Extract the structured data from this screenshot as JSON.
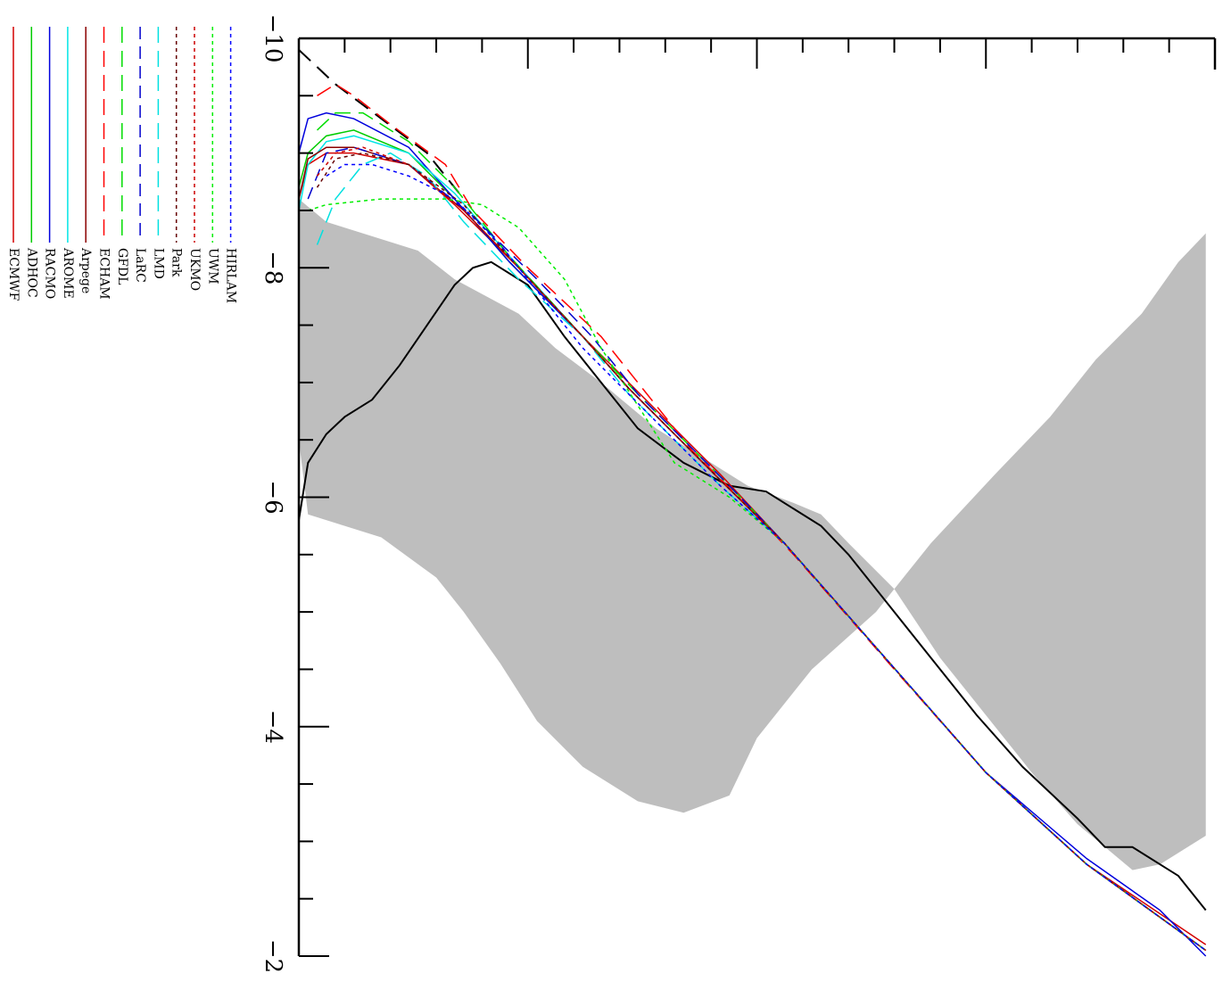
{
  "chart_data": {
    "type": "line",
    "orientation": "rotated-90-clockwise",
    "title": "",
    "xlabel": "",
    "ylabel": "",
    "xlim": [
      -10,
      -2
    ],
    "ylim": [
      0,
      1
    ],
    "x_ticks": [
      -10,
      -8,
      -6,
      -4,
      -2
    ],
    "x_tick_labels": [
      "−10",
      "−8",
      "−6",
      "−4",
      "−2"
    ],
    "grid": false,
    "legend_position": "top-left",
    "envelope": {
      "name": "",
      "color": "#bebebe",
      "upper": [
        [
          -8.6,
          0.0
        ],
        [
          -8.4,
          0.03
        ],
        [
          -8.15,
          0.13
        ],
        [
          -7.9,
          0.17
        ],
        [
          -7.6,
          0.24
        ],
        [
          -7.3,
          0.28
        ],
        [
          -7.0,
          0.33
        ],
        [
          -6.6,
          0.39
        ],
        [
          -6.1,
          0.49
        ],
        [
          -5.95,
          0.54
        ],
        [
          -5.85,
          0.57
        ],
        [
          -5.6,
          0.6
        ],
        [
          -5.2,
          0.65
        ],
        [
          -4.6,
          0.7
        ],
        [
          -4.1,
          0.75
        ],
        [
          -3.6,
          0.8
        ],
        [
          -3.15,
          0.85
        ],
        [
          -2.95,
          0.88
        ],
        [
          -2.75,
          0.91
        ],
        [
          -2.8,
          0.94
        ],
        [
          -3.05,
          0.99
        ]
      ],
      "lower": [
        [
          -6.5,
          0.0
        ],
        [
          -5.85,
          0.01
        ],
        [
          -5.75,
          0.05
        ],
        [
          -5.65,
          0.09
        ],
        [
          -5.3,
          0.15
        ],
        [
          -5.0,
          0.18
        ],
        [
          -4.55,
          0.22
        ],
        [
          -4.05,
          0.26
        ],
        [
          -3.65,
          0.31
        ],
        [
          -3.35,
          0.37
        ],
        [
          -3.25,
          0.42
        ],
        [
          -3.4,
          0.47
        ],
        [
          -3.9,
          0.5
        ],
        [
          -4.5,
          0.56
        ],
        [
          -5.0,
          0.63
        ],
        [
          -5.6,
          0.69
        ],
        [
          -6.2,
          0.76
        ],
        [
          -6.7,
          0.82
        ],
        [
          -7.2,
          0.87
        ],
        [
          -7.6,
          0.92
        ],
        [
          -8.05,
          0.96
        ],
        [
          -8.3,
          0.99
        ]
      ]
    },
    "series": [
      {
        "name": "",
        "color": "#000000",
        "dash": "solid",
        "width": 2,
        "points": [
          [
            -5.8,
            0.0
          ],
          [
            -6.3,
            0.01
          ],
          [
            -6.55,
            0.03
          ],
          [
            -6.7,
            0.05
          ],
          [
            -6.85,
            0.08
          ],
          [
            -7.15,
            0.11
          ],
          [
            -7.5,
            0.14
          ],
          [
            -7.85,
            0.17
          ],
          [
            -8.0,
            0.19
          ],
          [
            -8.05,
            0.21
          ],
          [
            -7.85,
            0.25
          ],
          [
            -7.4,
            0.29
          ],
          [
            -7.0,
            0.33
          ],
          [
            -6.6,
            0.37
          ],
          [
            -6.3,
            0.42
          ],
          [
            -6.1,
            0.47
          ],
          [
            -6.05,
            0.51
          ],
          [
            -5.9,
            0.54
          ],
          [
            -5.75,
            0.57
          ],
          [
            -5.5,
            0.6
          ],
          [
            -5.1,
            0.64
          ],
          [
            -4.6,
            0.69
          ],
          [
            -4.1,
            0.74
          ],
          [
            -3.65,
            0.79
          ],
          [
            -3.2,
            0.85
          ],
          [
            -2.95,
            0.88
          ],
          [
            -2.95,
            0.91
          ],
          [
            -2.7,
            0.96
          ],
          [
            -2.4,
            0.99
          ]
        ]
      },
      {
        "name": "",
        "color": "#000000",
        "dash": "18,10",
        "width": 2,
        "points": [
          [
            -9.9,
            0.0
          ],
          [
            -9.6,
            0.04
          ],
          [
            -9.3,
            0.09
          ],
          [
            -9.0,
            0.14
          ],
          [
            -8.6,
            0.18
          ]
        ]
      },
      {
        "name": "ECMWF",
        "color": "#d40000",
        "dash": "solid",
        "width": 1.5,
        "points": [
          [
            -8.6,
            0.0
          ],
          [
            -8.9,
            0.01
          ],
          [
            -9.0,
            0.03
          ],
          [
            -9.0,
            0.06
          ],
          [
            -8.9,
            0.12
          ],
          [
            -8.55,
            0.17
          ],
          [
            -8.0,
            0.24
          ],
          [
            -7.4,
            0.31
          ],
          [
            -7.0,
            0.36
          ],
          [
            -6.6,
            0.41
          ],
          [
            -6.2,
            0.46
          ],
          [
            -5.6,
            0.53
          ],
          [
            -4.6,
            0.64
          ],
          [
            -3.6,
            0.75
          ],
          [
            -2.8,
            0.86
          ],
          [
            -2.1,
            0.99
          ]
        ]
      },
      {
        "name": "ADHOC",
        "color": "#00cc00",
        "dash": "solid",
        "width": 1.5,
        "points": [
          [
            -8.7,
            0.0
          ],
          [
            -9.0,
            0.01
          ],
          [
            -9.15,
            0.03
          ],
          [
            -9.2,
            0.06
          ],
          [
            -9.0,
            0.12
          ],
          [
            -8.6,
            0.17
          ],
          [
            -8.05,
            0.23
          ],
          [
            -7.4,
            0.31
          ],
          [
            -6.95,
            0.36
          ],
          [
            -6.55,
            0.41
          ],
          [
            -6.15,
            0.46
          ],
          [
            -5.6,
            0.53
          ],
          [
            -4.6,
            0.64
          ],
          [
            -3.6,
            0.75
          ],
          [
            -2.8,
            0.86
          ],
          [
            -2.05,
            0.99
          ]
        ]
      },
      {
        "name": "RACMO",
        "color": "#0000dd",
        "dash": "solid",
        "width": 1.5,
        "points": [
          [
            -9.0,
            0.0
          ],
          [
            -9.3,
            0.01
          ],
          [
            -9.35,
            0.03
          ],
          [
            -9.3,
            0.06
          ],
          [
            -9.05,
            0.12
          ],
          [
            -8.6,
            0.17
          ],
          [
            -8.05,
            0.23
          ],
          [
            -7.4,
            0.31
          ],
          [
            -6.95,
            0.36
          ],
          [
            -6.55,
            0.41
          ],
          [
            -6.15,
            0.46
          ],
          [
            -5.6,
            0.53
          ],
          [
            -4.6,
            0.64
          ],
          [
            -3.6,
            0.75
          ],
          [
            -2.85,
            0.86
          ],
          [
            -2.4,
            0.94
          ],
          [
            -2.0,
            0.99
          ]
        ]
      },
      {
        "name": "AROME",
        "color": "#00e5e5",
        "dash": "solid",
        "width": 1.5,
        "points": [
          [
            -8.5,
            0.0
          ],
          [
            -8.9,
            0.01
          ],
          [
            -9.1,
            0.03
          ],
          [
            -9.15,
            0.06
          ],
          [
            -9.0,
            0.12
          ],
          [
            -8.65,
            0.17
          ],
          [
            -8.1,
            0.23
          ],
          [
            -7.4,
            0.31
          ],
          [
            -6.95,
            0.36
          ],
          [
            -6.55,
            0.41
          ],
          [
            -6.15,
            0.46
          ],
          [
            -5.6,
            0.53
          ],
          [
            -4.6,
            0.64
          ],
          [
            -3.6,
            0.75
          ],
          [
            -2.8,
            0.86
          ],
          [
            -2.05,
            0.99
          ]
        ]
      },
      {
        "name": "Arpege",
        "color": "#8b0000",
        "dash": "solid",
        "width": 1.5,
        "points": [
          [
            -8.6,
            0.0
          ],
          [
            -8.95,
            0.01
          ],
          [
            -9.05,
            0.03
          ],
          [
            -9.05,
            0.06
          ],
          [
            -8.9,
            0.12
          ],
          [
            -8.5,
            0.18
          ],
          [
            -8.0,
            0.24
          ],
          [
            -7.4,
            0.31
          ],
          [
            -6.95,
            0.36
          ],
          [
            -6.55,
            0.41
          ],
          [
            -6.15,
            0.46
          ],
          [
            -5.6,
            0.53
          ],
          [
            -4.6,
            0.64
          ],
          [
            -3.6,
            0.75
          ],
          [
            -2.8,
            0.86
          ],
          [
            -2.05,
            0.99
          ]
        ]
      },
      {
        "name": "ECHAM",
        "color": "#ff0000",
        "dash": "18,9",
        "width": 1.5,
        "points": [
          [
            -9.5,
            0.02
          ],
          [
            -9.6,
            0.04
          ],
          [
            -9.5,
            0.06
          ],
          [
            -9.25,
            0.1
          ],
          [
            -8.9,
            0.16
          ],
          [
            -8.5,
            0.19
          ],
          [
            -8.0,
            0.25
          ],
          [
            -7.4,
            0.33
          ],
          [
            -6.9,
            0.38
          ],
          [
            -6.4,
            0.43
          ],
          [
            -6.0,
            0.48
          ],
          [
            -5.5,
            0.54
          ],
          [
            -4.5,
            0.65
          ],
          [
            -3.6,
            0.75
          ],
          [
            -2.8,
            0.86
          ],
          [
            -2.05,
            0.99
          ]
        ]
      },
      {
        "name": "GFDL",
        "color": "#00dd00",
        "dash": "18,9",
        "width": 1.5,
        "points": [
          [
            -9.2,
            0.02
          ],
          [
            -9.35,
            0.04
          ],
          [
            -9.35,
            0.07
          ],
          [
            -9.1,
            0.12
          ],
          [
            -8.7,
            0.17
          ],
          [
            -8.1,
            0.23
          ],
          [
            -7.4,
            0.31
          ],
          [
            -6.9,
            0.37
          ],
          [
            -6.5,
            0.42
          ],
          [
            -6.1,
            0.47
          ],
          [
            -5.6,
            0.53
          ],
          [
            -4.6,
            0.64
          ],
          [
            -3.6,
            0.75
          ],
          [
            -2.8,
            0.86
          ],
          [
            -2.05,
            0.99
          ]
        ]
      },
      {
        "name": "LaRC",
        "color": "#0000cc",
        "dash": "14,8",
        "width": 1.5,
        "points": [
          [
            -8.6,
            0.01
          ],
          [
            -9.0,
            0.03
          ],
          [
            -9.05,
            0.06
          ],
          [
            -8.9,
            0.12
          ],
          [
            -8.45,
            0.19
          ],
          [
            -7.9,
            0.26
          ],
          [
            -7.4,
            0.32
          ],
          [
            -6.9,
            0.37
          ],
          [
            -6.5,
            0.42
          ],
          [
            -6.1,
            0.47
          ],
          [
            -5.6,
            0.53
          ],
          [
            -4.6,
            0.64
          ],
          [
            -3.6,
            0.75
          ],
          [
            -2.8,
            0.86
          ],
          [
            -2.05,
            0.99
          ]
        ]
      },
      {
        "name": "LMD",
        "color": "#00e0e0",
        "dash": "18,9",
        "width": 1.5,
        "points": [
          [
            -8.2,
            0.02
          ],
          [
            -8.6,
            0.04
          ],
          [
            -8.9,
            0.07
          ],
          [
            -9.0,
            0.1
          ],
          [
            -8.8,
            0.14
          ],
          [
            -8.4,
            0.18
          ],
          [
            -7.9,
            0.24
          ],
          [
            -7.4,
            0.31
          ],
          [
            -6.9,
            0.36
          ],
          [
            -6.5,
            0.41
          ],
          [
            -6.1,
            0.46
          ],
          [
            -5.6,
            0.53
          ],
          [
            -4.6,
            0.64
          ],
          [
            -3.6,
            0.75
          ],
          [
            -2.8,
            0.86
          ],
          [
            -2.05,
            0.99
          ]
        ]
      },
      {
        "name": "Park",
        "color": "#660000",
        "dash": "4,4",
        "width": 1.5,
        "points": [
          [
            -8.7,
            0.02
          ],
          [
            -8.95,
            0.04
          ],
          [
            -9.0,
            0.07
          ],
          [
            -8.9,
            0.12
          ],
          [
            -8.55,
            0.18
          ],
          [
            -8.0,
            0.24
          ],
          [
            -7.4,
            0.31
          ],
          [
            -6.95,
            0.36
          ],
          [
            -6.55,
            0.41
          ],
          [
            -6.15,
            0.46
          ],
          [
            -5.6,
            0.53
          ],
          [
            -4.6,
            0.64
          ],
          [
            -3.6,
            0.75
          ],
          [
            -2.8,
            0.86
          ],
          [
            -2.05,
            0.99
          ]
        ]
      },
      {
        "name": "UKMO",
        "color": "#cc0000",
        "dash": "4,4",
        "width": 1.5,
        "points": [
          [
            -8.8,
            0.02
          ],
          [
            -9.0,
            0.04
          ],
          [
            -9.05,
            0.07
          ],
          [
            -8.9,
            0.12
          ],
          [
            -8.5,
            0.18
          ],
          [
            -8.0,
            0.24
          ],
          [
            -7.4,
            0.31
          ],
          [
            -6.95,
            0.36
          ],
          [
            -6.55,
            0.41
          ],
          [
            -6.15,
            0.46
          ],
          [
            -5.6,
            0.53
          ],
          [
            -4.6,
            0.64
          ],
          [
            -3.6,
            0.75
          ],
          [
            -2.8,
            0.86
          ],
          [
            -2.05,
            0.99
          ]
        ]
      },
      {
        "name": "UWM",
        "color": "#00ee00",
        "dash": "4,4",
        "width": 1.5,
        "points": [
          [
            -8.5,
            0.01
          ],
          [
            -8.55,
            0.03
          ],
          [
            -8.6,
            0.09
          ],
          [
            -8.6,
            0.16
          ],
          [
            -8.55,
            0.2
          ],
          [
            -8.35,
            0.24
          ],
          [
            -7.9,
            0.29
          ],
          [
            -7.3,
            0.33
          ],
          [
            -6.8,
            0.37
          ],
          [
            -6.3,
            0.41
          ],
          [
            -6.0,
            0.47
          ],
          [
            -5.6,
            0.53
          ],
          [
            -4.6,
            0.64
          ],
          [
            -3.6,
            0.75
          ],
          [
            -2.8,
            0.86
          ],
          [
            -2.05,
            0.99
          ]
        ]
      },
      {
        "name": "HIRLAM",
        "color": "#0000ff",
        "dash": "4,4",
        "width": 1.5,
        "points": [
          [
            -8.8,
            0.03
          ],
          [
            -8.9,
            0.05
          ],
          [
            -8.9,
            0.08
          ],
          [
            -8.8,
            0.12
          ],
          [
            -8.6,
            0.17
          ],
          [
            -8.2,
            0.22
          ],
          [
            -7.8,
            0.26
          ],
          [
            -7.3,
            0.31
          ],
          [
            -6.9,
            0.36
          ],
          [
            -6.5,
            0.41
          ],
          [
            -6.1,
            0.46
          ],
          [
            -5.6,
            0.53
          ],
          [
            -4.6,
            0.64
          ],
          [
            -3.6,
            0.75
          ],
          [
            -2.8,
            0.86
          ],
          [
            -2.05,
            0.99
          ]
        ]
      }
    ]
  }
}
